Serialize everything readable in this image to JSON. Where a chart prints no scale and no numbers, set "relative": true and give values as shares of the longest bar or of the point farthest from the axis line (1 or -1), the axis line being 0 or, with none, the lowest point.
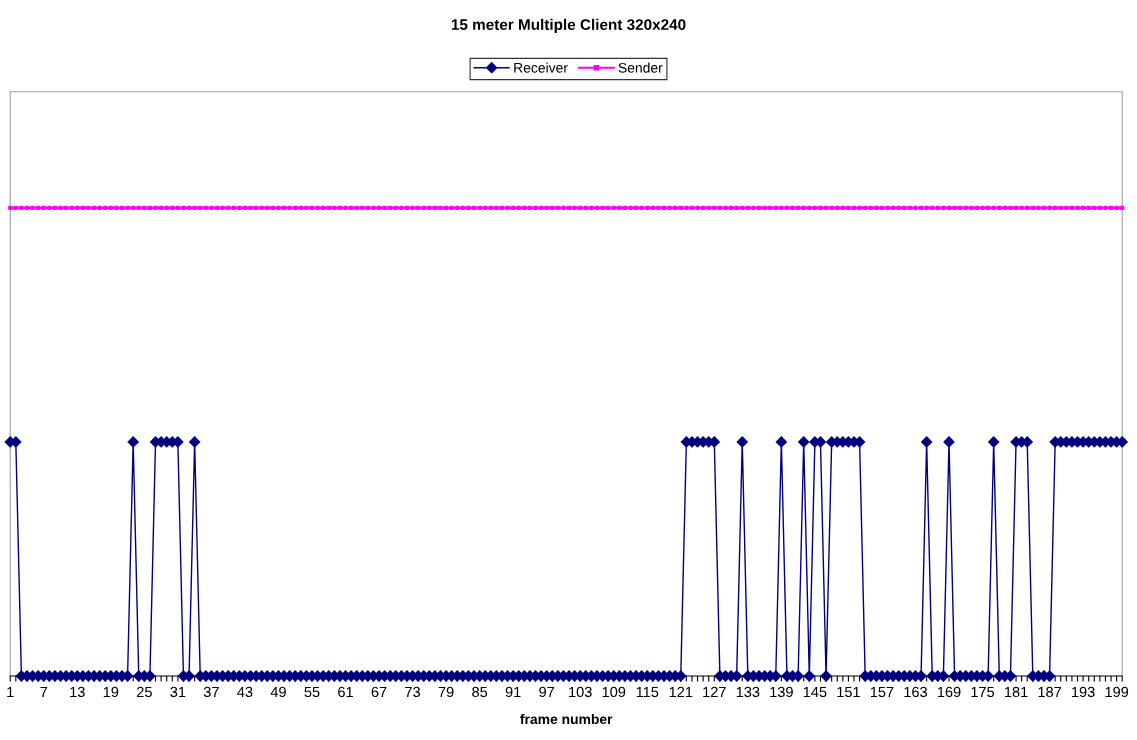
{
  "chart_data": {
    "type": "line",
    "title": "15 meter Multiple Client 320x240",
    "xlabel": "frame number",
    "relative": true,
    "categories": [
      "1",
      null,
      null,
      null,
      null,
      null,
      "7",
      null,
      null,
      null,
      null,
      null,
      "13",
      null,
      null,
      null,
      null,
      null,
      "19",
      null,
      null,
      null,
      null,
      null,
      "25",
      null,
      null,
      null,
      null,
      null,
      "31",
      null,
      null,
      null,
      null,
      null,
      "37",
      null,
      null,
      null,
      null,
      null,
      "43",
      null,
      null,
      null,
      null,
      null,
      "49",
      null,
      null,
      null,
      null,
      null,
      "55",
      null,
      null,
      null,
      null,
      null,
      "61",
      null,
      null,
      null,
      null,
      null,
      "67",
      null,
      null,
      null,
      null,
      null,
      "73",
      null,
      null,
      null,
      null,
      null,
      "79",
      null,
      null,
      null,
      null,
      null,
      "85",
      null,
      null,
      null,
      null,
      null,
      "91",
      null,
      null,
      null,
      null,
      null,
      "97",
      null,
      null,
      null,
      null,
      null,
      "103",
      null,
      null,
      null,
      null,
      null,
      "109",
      null,
      null,
      null,
      null,
      null,
      "115",
      null,
      null,
      null,
      null,
      null,
      "121",
      null,
      null,
      null,
      null,
      null,
      "127",
      null,
      null,
      null,
      null,
      null,
      "133",
      null,
      null,
      null,
      null,
      null,
      "139",
      null,
      null,
      null,
      null,
      null,
      "145",
      null,
      null,
      null,
      null,
      null,
      "151",
      null,
      null,
      null,
      null,
      null,
      "157",
      null,
      null,
      null,
      null,
      null,
      "163",
      null,
      null,
      null,
      null,
      null,
      "169",
      null,
      null,
      null,
      null,
      null,
      "175",
      null,
      null,
      null,
      null,
      null,
      "181",
      null,
      null,
      null,
      null,
      null,
      "187",
      null,
      null,
      null,
      null,
      null,
      "193",
      null,
      null,
      null,
      null,
      null,
      "199",
      null
    ],
    "series": [
      {
        "name": "Receiver",
        "color": "#000080",
        "marker": "diamond",
        "values": [
          0.5,
          0.5,
          0,
          0,
          0,
          0,
          0,
          0,
          0,
          0,
          0,
          0,
          0,
          0,
          0,
          0,
          0,
          0,
          0,
          0,
          0,
          0,
          0.5,
          0,
          0,
          0,
          0.5,
          0.5,
          0.5,
          0.5,
          0.5,
          0,
          0,
          0.5,
          0,
          0,
          0,
          0,
          0,
          0,
          0,
          0,
          0,
          0,
          0,
          0,
          0,
          0,
          0,
          0,
          0,
          0,
          0,
          0,
          0,
          0,
          0,
          0,
          0,
          0,
          0,
          0,
          0,
          0,
          0,
          0,
          0,
          0,
          0,
          0,
          0,
          0,
          0,
          0,
          0,
          0,
          0,
          0,
          0,
          0,
          0,
          0,
          0,
          0,
          0,
          0,
          0,
          0,
          0,
          0,
          0,
          0,
          0,
          0,
          0,
          0,
          0,
          0,
          0,
          0,
          0,
          0,
          0,
          0,
          0,
          0,
          0,
          0,
          0,
          0,
          0,
          0,
          0,
          0,
          0,
          0,
          0,
          0,
          0,
          0,
          0,
          0.5,
          0.5,
          0.5,
          0.5,
          0.5,
          0.5,
          0,
          0,
          0,
          0,
          0.5,
          0,
          0,
          0,
          0,
          0,
          0,
          0.5,
          0,
          0,
          0,
          0.5,
          0,
          0.5,
          0.5,
          0,
          0.5,
          0.5,
          0.5,
          0.5,
          0.5,
          0.5,
          0,
          0,
          0,
          0,
          0,
          0,
          0,
          0,
          0,
          0,
          0,
          0.5,
          0,
          0,
          0,
          0.5,
          0,
          0,
          0,
          0,
          0,
          0,
          0,
          0.5,
          0,
          0,
          0,
          0.5,
          0.5,
          0.5,
          0,
          0,
          0,
          0,
          0.5,
          0.5,
          0.5,
          0.5,
          0.5,
          0.5,
          0.5,
          0.5,
          0.5,
          0.5,
          0.5,
          0.5,
          0.5
        ]
      },
      {
        "name": "Sender",
        "color": "#ff00ff",
        "marker": "square",
        "values": [
          1,
          1,
          1,
          1,
          1,
          1,
          1,
          1,
          1,
          1,
          1,
          1,
          1,
          1,
          1,
          1,
          1,
          1,
          1,
          1,
          1,
          1,
          1,
          1,
          1,
          1,
          1,
          1,
          1,
          1,
          1,
          1,
          1,
          1,
          1,
          1,
          1,
          1,
          1,
          1,
          1,
          1,
          1,
          1,
          1,
          1,
          1,
          1,
          1,
          1,
          1,
          1,
          1,
          1,
          1,
          1,
          1,
          1,
          1,
          1,
          1,
          1,
          1,
          1,
          1,
          1,
          1,
          1,
          1,
          1,
          1,
          1,
          1,
          1,
          1,
          1,
          1,
          1,
          1,
          1,
          1,
          1,
          1,
          1,
          1,
          1,
          1,
          1,
          1,
          1,
          1,
          1,
          1,
          1,
          1,
          1,
          1,
          1,
          1,
          1,
          1,
          1,
          1,
          1,
          1,
          1,
          1,
          1,
          1,
          1,
          1,
          1,
          1,
          1,
          1,
          1,
          1,
          1,
          1,
          1,
          1,
          1,
          1,
          1,
          1,
          1,
          1,
          1,
          1,
          1,
          1,
          1,
          1,
          1,
          1,
          1,
          1,
          1,
          1,
          1,
          1,
          1,
          1,
          1,
          1,
          1,
          1,
          1,
          1,
          1,
          1,
          1,
          1,
          1,
          1,
          1,
          1,
          1,
          1,
          1,
          1,
          1,
          1,
          1,
          1,
          1,
          1,
          1,
          1,
          1,
          1,
          1,
          1,
          1,
          1,
          1,
          1,
          1,
          1,
          1,
          1,
          1,
          1,
          1,
          1,
          1,
          1,
          1,
          1,
          1,
          1,
          1,
          1,
          1,
          1,
          1,
          1,
          1,
          1,
          1
        ]
      }
    ],
    "legend": "top",
    "grid": false
  }
}
